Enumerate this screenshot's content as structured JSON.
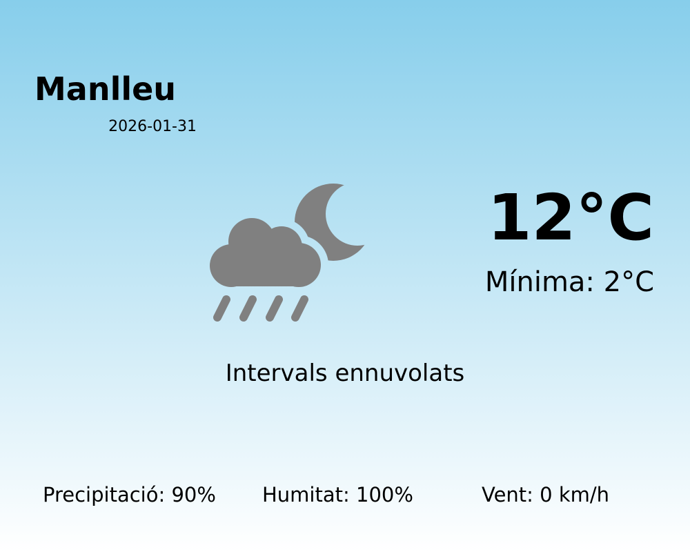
{
  "location": {
    "city": "Manlleu",
    "date": "2026-01-31"
  },
  "current": {
    "temperature": "12°C",
    "minimum": "Mínima: 2°C",
    "description": "Intervals ennuvolats",
    "icon": "cloud-moon-rain-icon",
    "icon_color": "#808080"
  },
  "stats": {
    "precipitation": "Precipitació: 90%",
    "humidity": "Humitat: 100%",
    "wind": "Vent: 0 km/h"
  },
  "colors": {
    "background_top": "#87CEEB",
    "background_bottom": "#FFFFFF"
  }
}
